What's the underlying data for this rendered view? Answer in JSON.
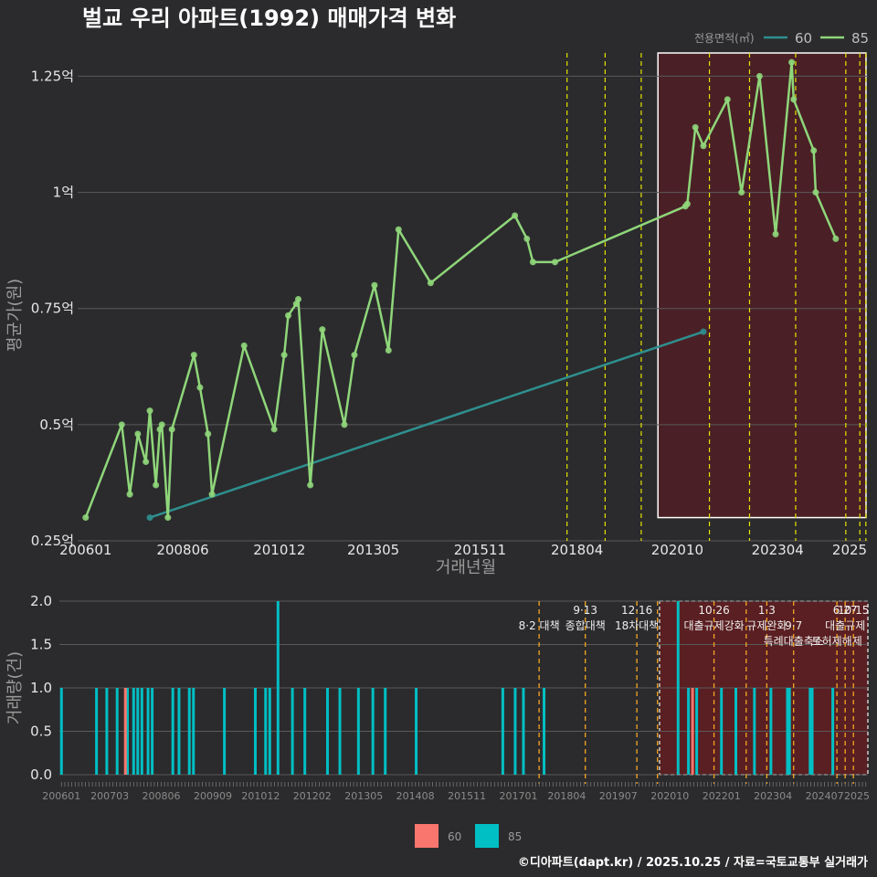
{
  "colors": {
    "bg": "#2b2b2d",
    "grid": "#5a5a5a",
    "s60": "#2f8f8f",
    "s85": "#8fd67a",
    "bar60": "#f8766d",
    "bar85": "#00bfc4",
    "policy": "#e4e400",
    "policy2": "#f5a623",
    "highlight": "#5a1a1a"
  },
  "chart_data": [
    {
      "type": "line",
      "title": "벌교 우리 아파트(1992) 매매가격 변화",
      "xlabel": "거래년월",
      "ylabel": "평균가(원)",
      "ylim": [
        0.25,
        1.3
      ],
      "xlim": [
        2005.8,
        2025.5
      ],
      "yticks": [
        {
          "v": 0.25,
          "label": "0.25억"
        },
        {
          "v": 0.5,
          "label": "0.5억"
        },
        {
          "v": 0.75,
          "label": "0.75억"
        },
        {
          "v": 1.0,
          "label": "1억"
        },
        {
          "v": 1.25,
          "label": "1.25억"
        }
      ],
      "xticks": [
        {
          "v": 2006.0,
          "label": "200601"
        },
        {
          "v": 2008.42,
          "label": "200806"
        },
        {
          "v": 2010.83,
          "label": "201012"
        },
        {
          "v": 2013.17,
          "label": "201305"
        },
        {
          "v": 2015.83,
          "label": "201511"
        },
        {
          "v": 2018.25,
          "label": "201804"
        },
        {
          "v": 2020.75,
          "label": "202010"
        },
        {
          "v": 2023.25,
          "label": "202304"
        },
        {
          "v": 2025.5,
          "label": "2025"
        }
      ],
      "legend_title": "전용면적(㎡)",
      "series": [
        {
          "name": "60",
          "points": [
            [
              2007.6,
              0.3
            ],
            [
              2021.4,
              0.7
            ]
          ]
        },
        {
          "name": "85",
          "points": [
            [
              2006.0,
              0.3
            ],
            [
              2006.9,
              0.5
            ],
            [
              2007.1,
              0.35
            ],
            [
              2007.3,
              0.48
            ],
            [
              2007.5,
              0.42
            ],
            [
              2007.6,
              0.53
            ],
            [
              2007.75,
              0.37
            ],
            [
              2007.85,
              0.49
            ],
            [
              2007.9,
              0.5
            ],
            [
              2008.05,
              0.3
            ],
            [
              2008.15,
              0.49
            ],
            [
              2008.7,
              0.65
            ],
            [
              2008.85,
              0.58
            ],
            [
              2009.05,
              0.48
            ],
            [
              2009.15,
              0.35
            ],
            [
              2009.95,
              0.67
            ],
            [
              2010.7,
              0.49
            ],
            [
              2010.95,
              0.65
            ],
            [
              2011.05,
              0.735
            ],
            [
              2011.25,
              0.76
            ],
            [
              2011.3,
              0.77
            ],
            [
              2011.6,
              0.37
            ],
            [
              2011.9,
              0.705
            ],
            [
              2012.45,
              0.5
            ],
            [
              2012.7,
              0.65
            ],
            [
              2013.2,
              0.8
            ],
            [
              2013.55,
              0.66
            ],
            [
              2013.8,
              0.92
            ],
            [
              2014.6,
              0.805
            ],
            [
              2016.7,
              0.95
            ],
            [
              2017.0,
              0.9
            ],
            [
              2017.15,
              0.85
            ],
            [
              2017.7,
              0.85
            ],
            [
              2020.95,
              0.97
            ],
            [
              2021.0,
              0.975
            ],
            [
              2021.2,
              1.14
            ],
            [
              2021.4,
              1.1
            ],
            [
              2022.0,
              1.2
            ],
            [
              2022.35,
              1.0
            ],
            [
              2022.8,
              1.25
            ],
            [
              2023.2,
              0.91
            ],
            [
              2023.6,
              1.28
            ],
            [
              2023.65,
              1.2
            ],
            [
              2024.15,
              1.09
            ],
            [
              2024.2,
              1.0
            ],
            [
              2024.7,
              0.9
            ]
          ]
        }
      ]
    },
    {
      "type": "bar",
      "ylabel": "거래량(건)",
      "ylim": [
        0,
        2.0
      ],
      "yticks": [
        {
          "v": 0,
          "label": "0.0"
        },
        {
          "v": 0.5,
          "label": "0.5"
        },
        {
          "v": 1.0,
          "label": "1.0"
        },
        {
          "v": 1.5,
          "label": "1.5"
        },
        {
          "v": 2.0,
          "label": "2.0"
        }
      ],
      "xticks": [
        {
          "v": 2006.0,
          "label": "200601"
        },
        {
          "v": 2007.17,
          "label": "200703"
        },
        {
          "v": 2008.42,
          "label": "200806"
        },
        {
          "v": 2009.67,
          "label": "200909"
        },
        {
          "v": 2010.83,
          "label": "201012"
        },
        {
          "v": 2012.08,
          "label": "201202"
        },
        {
          "v": 2013.33,
          "label": "201305"
        },
        {
          "v": 2014.58,
          "label": "201408"
        },
        {
          "v": 2015.83,
          "label": "201511"
        },
        {
          "v": 2017.08,
          "label": "201701"
        },
        {
          "v": 2018.25,
          "label": "201804"
        },
        {
          "v": 2019.5,
          "label": "201907"
        },
        {
          "v": 2020.75,
          "label": "202010"
        },
        {
          "v": 2022.0,
          "label": "202201"
        },
        {
          "v": 2023.25,
          "label": "202304"
        },
        {
          "v": 2024.5,
          "label": "202407"
        },
        {
          "v": 2025.5,
          "label": "2025"
        }
      ],
      "bars60": [
        [
          2007.55,
          1
        ],
        [
          2021.3,
          1
        ]
      ],
      "bars85": [
        [
          2006.0,
          1
        ],
        [
          2006.85,
          1
        ],
        [
          2007.1,
          1
        ],
        [
          2007.35,
          1
        ],
        [
          2007.6,
          1
        ],
        [
          2007.75,
          1
        ],
        [
          2007.85,
          1
        ],
        [
          2007.95,
          1
        ],
        [
          2008.1,
          1
        ],
        [
          2008.2,
          1
        ],
        [
          2008.7,
          1
        ],
        [
          2008.85,
          1
        ],
        [
          2009.1,
          1
        ],
        [
          2009.2,
          1
        ],
        [
          2009.95,
          1
        ],
        [
          2010.7,
          1
        ],
        [
          2010.95,
          1
        ],
        [
          2011.05,
          1
        ],
        [
          2011.25,
          2
        ],
        [
          2011.6,
          1
        ],
        [
          2011.9,
          1
        ],
        [
          2012.45,
          1
        ],
        [
          2012.75,
          1
        ],
        [
          2013.2,
          1
        ],
        [
          2013.55,
          1
        ],
        [
          2013.85,
          1
        ],
        [
          2014.6,
          1
        ],
        [
          2016.7,
          1
        ],
        [
          2017.0,
          1
        ],
        [
          2017.2,
          1
        ],
        [
          2017.7,
          1
        ],
        [
          2020.95,
          2
        ],
        [
          2021.2,
          1
        ],
        [
          2021.4,
          1
        ],
        [
          2022.0,
          1
        ],
        [
          2022.35,
          1
        ],
        [
          2022.8,
          1
        ],
        [
          2023.2,
          1
        ],
        [
          2023.6,
          1
        ],
        [
          2023.65,
          1
        ],
        [
          2024.15,
          1
        ],
        [
          2024.2,
          1
        ],
        [
          2024.7,
          1
        ]
      ],
      "legend": [
        "60",
        "85"
      ]
    }
  ],
  "policies_top": [
    2018.0,
    2018.95,
    2019.85,
    2021.55,
    2022.55,
    2023.7,
    2024.95,
    2025.3,
    2025.45
  ],
  "policies_bottom": [
    {
      "x": 2017.58,
      "label": "8·2 대책",
      "row": 1,
      "color": "#f5a623"
    },
    {
      "x": 2018.7,
      "label": "9·13",
      "row": 0,
      "color": "#f5a623"
    },
    {
      "x": 2018.7,
      "label": "종합대책",
      "row": 1,
      "color": "#f5a623"
    },
    {
      "x": 2019.95,
      "label": "12·16",
      "row": 0,
      "color": "#f5a623"
    },
    {
      "x": 2019.95,
      "label": "18차대책",
      "row": 1,
      "color": "#f5a623"
    },
    {
      "x": 2020.45,
      "label": "",
      "row": 0,
      "color": "#f5a623"
    },
    {
      "x": 2021.82,
      "label": "10·26",
      "row": 0,
      "color": "#f5a623"
    },
    {
      "x": 2021.82,
      "label": "대출규제강화",
      "row": 1,
      "color": "#f5a623"
    },
    {
      "x": 2022.6,
      "label": "",
      "row": 0,
      "color": "#f5a623"
    },
    {
      "x": 2023.1,
      "label": "1·3",
      "row": 0,
      "color": "#f5a623"
    },
    {
      "x": 2023.1,
      "label": "규제완화",
      "row": 1,
      "color": "#f5a623"
    },
    {
      "x": 2023.75,
      "label": "9·7",
      "row": 1,
      "color": "#f5a623"
    },
    {
      "x": 2023.75,
      "label": "특례대출축소",
      "row": 2,
      "color": "#f5a623"
    },
    {
      "x": 2024.8,
      "label": "토허제해제",
      "row": 2,
      "color": "#f5a623"
    },
    {
      "x": 2025.0,
      "label": "6·27",
      "row": 0,
      "color": "#f5a623"
    },
    {
      "x": 2025.0,
      "label": "대출규제",
      "row": 1,
      "color": "#f5a623"
    },
    {
      "x": 2025.2,
      "label": "10·15",
      "row": 0,
      "color": "#f5a623"
    }
  ],
  "caption": "©디아파트(dapt.kr) / 2025.10.25 / 자료=국토교통부 실거래가"
}
